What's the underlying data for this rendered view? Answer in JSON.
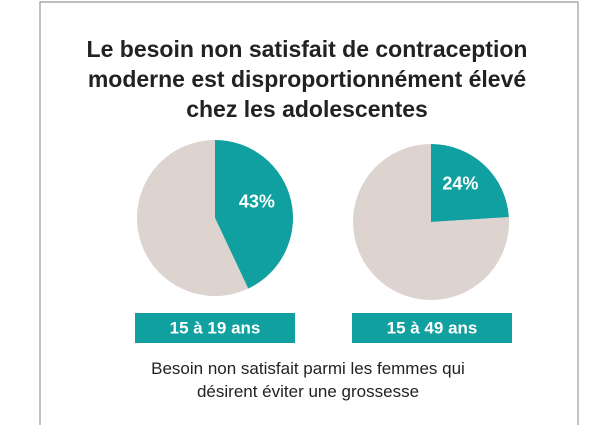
{
  "title": "Le besoin non satisfait de contraception moderne est disproportionnément élevé chez les adolescentes",
  "caption": "Besoin non satisfait parmi les femmes qui désirent éviter une grossesse",
  "chart_data": [
    {
      "type": "pie",
      "title": "15 à 19 ans",
      "values": [
        43,
        57
      ],
      "value_labels": [
        "43%",
        null
      ],
      "colors": [
        "#10a0a0",
        "#ddd3cf"
      ]
    },
    {
      "type": "pie",
      "title": "15 à 49 ans",
      "values": [
        24,
        76
      ],
      "value_labels": [
        "24%",
        null
      ],
      "colors": [
        "#10a0a0",
        "#ddd3cf"
      ]
    }
  ]
}
